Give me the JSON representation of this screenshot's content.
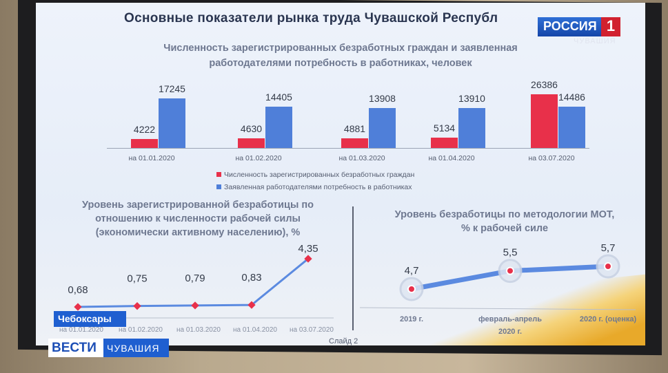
{
  "slide": {
    "title": "Основные показатели рынка труда Чувашской Республ",
    "slide_number": "Слайд 2"
  },
  "broadcast": {
    "channel_logo": "РОССИЯ",
    "channel_number": "1",
    "channel_region": "ЧУВАШИЯ",
    "location": "Чебоксары",
    "news_brand": "ВЕСТИ",
    "news_region": "ЧУВАШИЯ"
  },
  "colors": {
    "red": "#e8304a",
    "blue": "#4f7fd9",
    "navy": "#2a3550"
  },
  "chart_data": [
    {
      "type": "bar",
      "title": "Численность зарегистрированных безработных граждан и заявленная работодателями потребность в работниках, человек",
      "title_lines": [
        "Численность зарегистрированных безработных граждан и заявленная",
        "работодателями потребность в работниках, человек"
      ],
      "categories": [
        "на 01.01.2020",
        "на 01.02.2020",
        "на 01.03.2020",
        "на 01.04.2020",
        "на 03.07.2020"
      ],
      "series": [
        {
          "name": "Численность зарегистрированных безработных граждан",
          "color": "#e8304a",
          "values": [
            4222,
            4630,
            4881,
            5134,
            26386
          ]
        },
        {
          "name": "Заявленная работодателями потребность в работниках",
          "color": "#4f7fd9",
          "values": [
            17245,
            14405,
            13908,
            13910,
            14486
          ]
        }
      ],
      "legend": "bottom"
    },
    {
      "type": "line",
      "title_lines": [
        "Уровень зарегистрированной безработицы по",
        "отношению к численности рабочей силы",
        "(экономически активному населению), %"
      ],
      "categories": [
        "на 01.01.2020",
        "на 01.02.2020",
        "на 01.03.2020",
        "на 01.04.2020",
        "на 03.07.2020"
      ],
      "values": [
        0.68,
        0.75,
        0.79,
        0.83,
        4.35
      ],
      "labels": [
        "0,68",
        "0,75",
        "0,79",
        "0,83",
        "4,35"
      ]
    },
    {
      "type": "line",
      "title_lines": [
        "Уровень безработицы по методологии МОТ,",
        "% к рабочей силе"
      ],
      "categories": [
        "2019 г.",
        "февраль-апрель 2020 г.",
        "2020 г. (оценка)"
      ],
      "category_lines": [
        [
          "2019 г."
        ],
        [
          "февраль-апрель",
          "2020 г."
        ],
        [
          "2020 г. (оценка)"
        ]
      ],
      "values": [
        4.7,
        5.5,
        5.7
      ],
      "labels": [
        "4,7",
        "5,5",
        "5,7"
      ]
    }
  ]
}
